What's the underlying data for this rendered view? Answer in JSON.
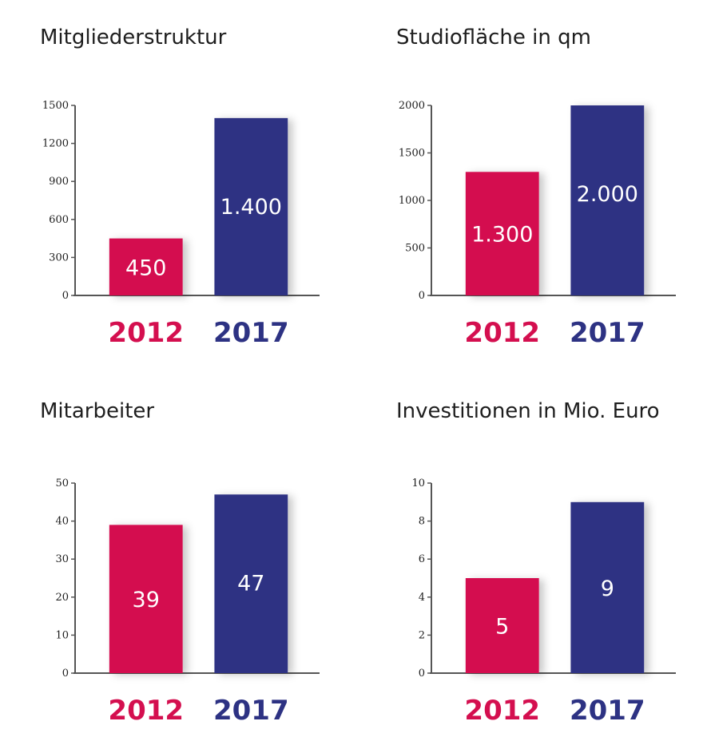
{
  "colors": {
    "2012": "#d40f4f",
    "2017": "#2d3283",
    "axis": "#555555",
    "text": "#1e1e1e"
  },
  "chart_data": [
    {
      "type": "bar",
      "title": "Mitgliederstruktur",
      "categories": [
        "2012",
        "2017"
      ],
      "values": [
        450,
        1400
      ],
      "value_labels": [
        "450",
        "1.400"
      ],
      "yticks": [
        0,
        300,
        600,
        900,
        1200,
        1500
      ],
      "ylim": [
        0,
        1500
      ],
      "grid": false,
      "legend": "none"
    },
    {
      "type": "bar",
      "title": "Studiofläche in qm",
      "categories": [
        "2012",
        "2017"
      ],
      "values": [
        1300,
        2000
      ],
      "value_labels": [
        "1.300",
        "2.000"
      ],
      "yticks": [
        0,
        500,
        1000,
        1500,
        2000
      ],
      "ylim": [
        0,
        2000
      ],
      "grid": false,
      "legend": "none"
    },
    {
      "type": "bar",
      "title": "Mitarbeiter",
      "categories": [
        "2012",
        "2017"
      ],
      "values": [
        39,
        47
      ],
      "value_labels": [
        "39",
        "47"
      ],
      "yticks": [
        0,
        10,
        20,
        30,
        40,
        50
      ],
      "ylim": [
        0,
        50
      ],
      "grid": false,
      "legend": "none"
    },
    {
      "type": "bar",
      "title": "Investitionen in Mio. Euro",
      "categories": [
        "2012",
        "2017"
      ],
      "values": [
        5,
        9
      ],
      "value_labels": [
        "5",
        "9"
      ],
      "yticks": [
        0,
        2,
        4,
        6,
        8,
        10
      ],
      "ylim": [
        0,
        10
      ],
      "grid": false,
      "legend": "none"
    }
  ]
}
